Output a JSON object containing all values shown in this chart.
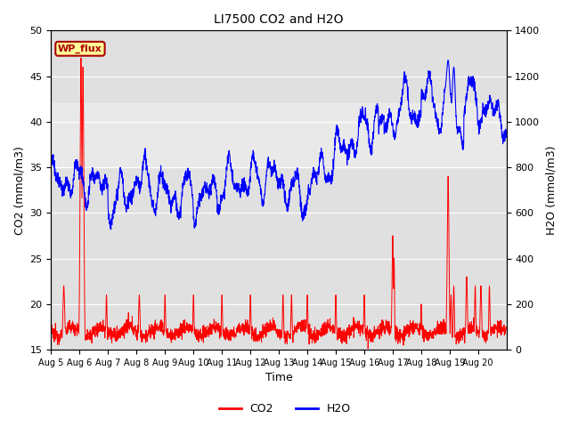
{
  "title": "LI7500 CO2 and H2O",
  "xlabel": "Time",
  "ylabel_left": "CO2 (mmol/m3)",
  "ylabel_right": "H2O (mmol/m3)",
  "ylim_left": [
    15,
    50
  ],
  "ylim_right": [
    0,
    1400
  ],
  "xtick_labels": [
    "Aug 5",
    "Aug 6",
    "Aug 7",
    "Aug 8",
    "Aug 9",
    "Aug 10",
    "Aug 11",
    "Aug 12",
    "Aug 13",
    "Aug 14",
    "Aug 15",
    "Aug 16",
    "Aug 17",
    "Aug 18",
    "Aug 19",
    "Aug 20"
  ],
  "co2_color": "#ff0000",
  "h2o_color": "#0000ff",
  "background_color": "#ffffff",
  "plot_bg_color": "#e0e0e0",
  "annotation_text": "WP_flux",
  "annotation_color": "#aa0000",
  "annotation_bg": "#ffff99",
  "legend_co2": "CO2",
  "legend_h2o": "H2O",
  "n_days": 16,
  "pts_per_day": 144,
  "h2o_band_color": "#d8d8d8",
  "ytick_left": [
    15,
    20,
    25,
    30,
    35,
    40,
    45,
    50
  ],
  "ytick_right": [
    0,
    200,
    400,
    600,
    800,
    1000,
    1200,
    1400
  ]
}
